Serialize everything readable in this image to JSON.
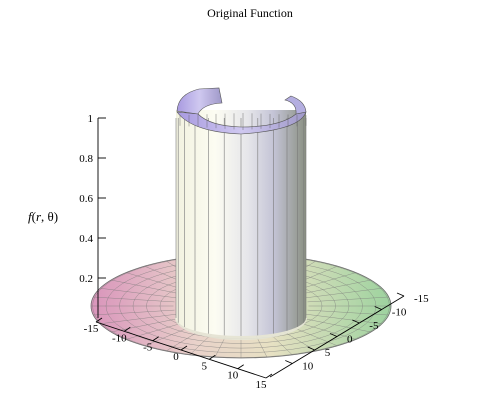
{
  "chart_data": {
    "type": "surface3d",
    "title": "Original Function",
    "zlabel": "f(r, θ)",
    "x_ticks": [
      "-15",
      "-10",
      "-5",
      "0",
      "5",
      "10",
      "15"
    ],
    "y_ticks": [
      "-15",
      "-10",
      "-5",
      "0",
      "5",
      "10"
    ],
    "z_ticks": [
      "0.2",
      "0.4",
      "0.6",
      "0.8",
      "1"
    ],
    "xlim": [
      -15,
      15
    ],
    "ylim": [
      -15,
      15
    ],
    "zlim": [
      0,
      1
    ],
    "disk_radius": 15,
    "cylinder_radius": 5,
    "cylinder_height": 1,
    "open_wedge_degrees": 90,
    "colors": {
      "disk_magenta": "#d9a0c0",
      "disk_green": "#a8d8a8",
      "cylinder_light": "#f4f4e6",
      "cylinder_shadow": "#9aa090",
      "rim_purple": "#b6a6e6"
    }
  }
}
